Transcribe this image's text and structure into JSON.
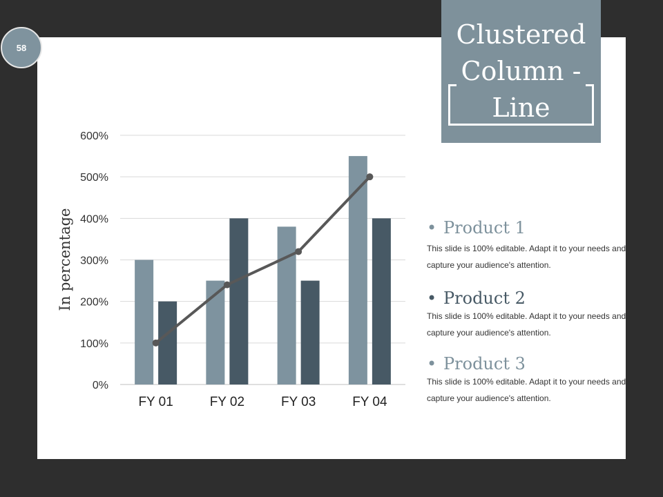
{
  "page_number": "58",
  "title": "Clustered\nColumn -\nLine",
  "chart_data": {
    "type": "bar",
    "categories": [
      "FY 01",
      "FY 02",
      "FY 03",
      "FY 04"
    ],
    "series": [
      {
        "kind": "bar",
        "color": "#7e939f",
        "values": [
          300,
          250,
          380,
          550
        ]
      },
      {
        "kind": "bar",
        "color": "#475965",
        "values": [
          200,
          400,
          250,
          400
        ]
      },
      {
        "kind": "line",
        "color": "#585858",
        "values": [
          100,
          240,
          320,
          500
        ]
      }
    ],
    "ylabel": "In percentage",
    "ylim": [
      0,
      600
    ],
    "yticks": [
      "0%",
      "100%",
      "200%",
      "300%",
      "400%",
      "500%",
      "600%"
    ],
    "grid": true,
    "legend": "none"
  },
  "products": [
    {
      "title": "Product 1",
      "color": "#7d919c",
      "desc": "This slide is 100% editable. Adapt it to your needs and capture your audience's attention."
    },
    {
      "title": "Product 2",
      "color": "#475965",
      "desc": "This slide is 100% editable. Adapt it to your needs and capture your audience's attention."
    },
    {
      "title": "Product 3",
      "color": "#7d919c",
      "desc": "This slide is 100% editable. Adapt it to your needs and capture your audience's attention."
    }
  ]
}
